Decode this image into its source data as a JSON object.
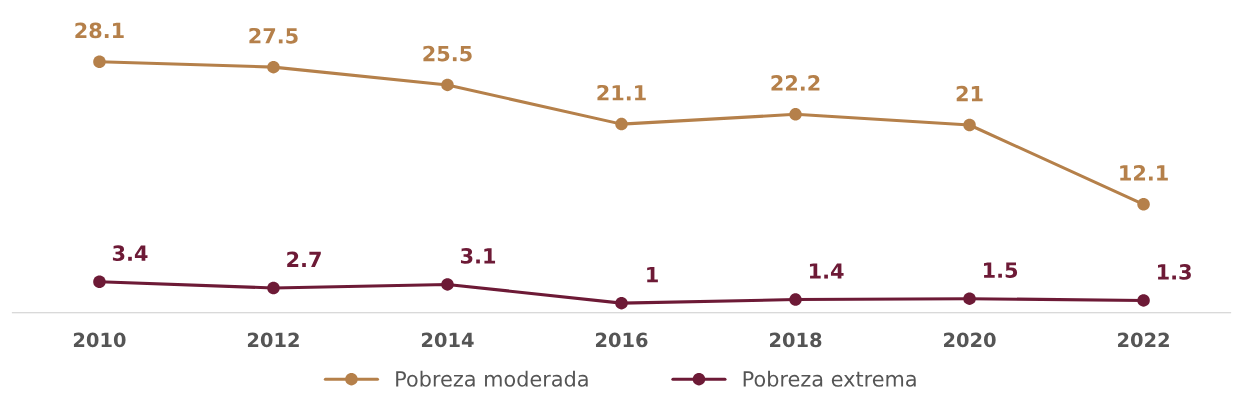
{
  "chart_data": {
    "type": "line",
    "categories": [
      "2010",
      "2012",
      "2014",
      "2016",
      "2018",
      "2020",
      "2022"
    ],
    "series": [
      {
        "name": "Pobreza moderada",
        "color": "#b5804a",
        "values": [
          28.1,
          27.5,
          25.5,
          21.1,
          22.2,
          21,
          12.1
        ]
      },
      {
        "name": "Pobreza extrema",
        "color": "#6d1a36",
        "values": [
          3.4,
          2.7,
          3.1,
          1,
          1.4,
          1.5,
          1.3
        ]
      }
    ],
    "data_labels": true,
    "marker": "circle",
    "line_style": "solid",
    "grid": false,
    "legend": "bottom",
    "tick_labels": "x"
  }
}
